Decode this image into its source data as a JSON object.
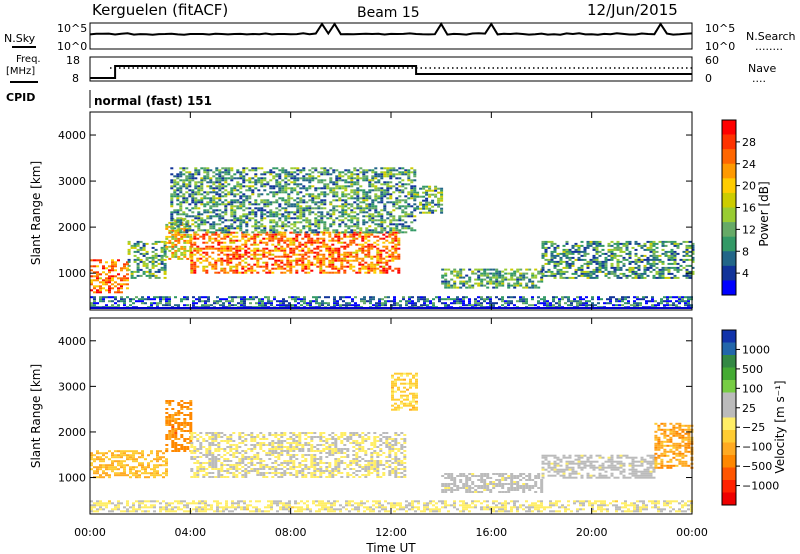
{
  "header": {
    "site": "Kerguelen (fitACF)",
    "beam": "Beam 15",
    "date": "12/Jun/2015"
  },
  "noise_panel": {
    "left_label": "N.Sky",
    "right_label": "N.Search",
    "right_legend_line": "........",
    "left_ticks": [
      "10^5",
      "10^0"
    ],
    "right_ticks": [
      "10^5",
      "10^0"
    ]
  },
  "freq_panel": {
    "left_label_line1": "Freq.",
    "left_label_line2": "[MHz]",
    "right_label": "Nave",
    "right_legend_line": "....",
    "left_ticks": [
      "18",
      "8"
    ],
    "right_ticks": [
      "60",
      "0"
    ],
    "cpid_label": "CPID",
    "mode_label": "normal (fast) 151"
  },
  "power_panel": {
    "ylabel": "Slant Range [km]",
    "yticks": [
      "4000",
      "3000",
      "2000",
      "1000"
    ],
    "colorbar_label": "Power [dB]",
    "colorbar_ticks": [
      "28",
      "24",
      "20",
      "16",
      "12",
      "8",
      "4"
    ],
    "colorbar_colors": [
      "#ff0000",
      "#ff3300",
      "#ff6600",
      "#ff9900",
      "#ffcc00",
      "#cccc00",
      "#99cc33",
      "#66aa66",
      "#339966",
      "#226688",
      "#113399",
      "#0000ff"
    ]
  },
  "velocity_panel": {
    "ylabel": "Slant Range [km]",
    "yticks": [
      "4000",
      "3000",
      "2000",
      "1000"
    ],
    "colorbar_label": "Velocity [m s⁻¹]",
    "colorbar_ticks": [
      "1000",
      "500",
      "100",
      "25",
      "−25",
      "−100",
      "−500",
      "−1000"
    ],
    "colorbar_colors": [
      "#1133aa",
      "#2266aa",
      "#338844",
      "#44aa33",
      "#77cc44",
      "#bbbbbb",
      "#bbbbbb",
      "#ffee66",
      "#ffcc33",
      "#ffaa22",
      "#ff8800",
      "#ff5500",
      "#ff2200",
      "#ee0000"
    ]
  },
  "xaxis": {
    "label": "Time UT",
    "ticks": [
      "00:00",
      "04:00",
      "08:00",
      "12:00",
      "16:00",
      "20:00",
      "00:00"
    ]
  },
  "chart_data": [
    {
      "type": "heatmap",
      "title": "Power",
      "xlabel": "Time UT",
      "ylabel": "Slant Range [km]",
      "xlim": [
        0,
        24
      ],
      "ylim": [
        200,
        4500
      ],
      "zlabel": "Power [dB]",
      "zlim": [
        0,
        30
      ],
      "regions": [
        {
          "x0": 0.0,
          "x1": 1.5,
          "y0": 600,
          "y1": 1300,
          "z": 24
        },
        {
          "x0": 1.5,
          "x1": 3.0,
          "y0": 900,
          "y1": 1700,
          "z": 10
        },
        {
          "x0": 3.0,
          "x1": 4.0,
          "y0": 1300,
          "y1": 2200,
          "z": 18
        },
        {
          "x0": 4.0,
          "x1": 12.3,
          "y0": 1000,
          "y1": 1900,
          "z": 24
        },
        {
          "x0": 3.2,
          "x1": 13.0,
          "y0": 1900,
          "y1": 3300,
          "z": 9
        },
        {
          "x0": 13.0,
          "x1": 14.0,
          "y0": 2300,
          "y1": 2900,
          "z": 10
        },
        {
          "x0": 14.0,
          "x1": 18.0,
          "y0": 700,
          "y1": 1100,
          "z": 10
        },
        {
          "x0": 18.0,
          "x1": 24.0,
          "y0": 900,
          "y1": 1700,
          "z": 9
        },
        {
          "x0": 0.0,
          "x1": 24.0,
          "y0": 250,
          "y1": 500,
          "z": 5
        }
      ]
    },
    {
      "type": "heatmap",
      "title": "Velocity",
      "xlabel": "Time UT",
      "ylabel": "Slant Range [km]",
      "xlim": [
        0,
        24
      ],
      "ylim": [
        200,
        4500
      ],
      "zlabel": "Velocity [m s⁻¹]",
      "zlim": [
        -1000,
        1000
      ],
      "regions": [
        {
          "x0": 0.0,
          "x1": 3.0,
          "y0": 1000,
          "y1": 1600,
          "z": -300
        },
        {
          "x0": 3.0,
          "x1": 4.0,
          "y0": 1600,
          "y1": 2700,
          "z": -500
        },
        {
          "x0": 4.0,
          "x1": 12.5,
          "y0": 1000,
          "y1": 2000,
          "z": 0
        },
        {
          "x0": 12.0,
          "x1": 13.0,
          "y0": 2500,
          "y1": 3300,
          "z": -200
        },
        {
          "x0": 14.0,
          "x1": 18.0,
          "y0": 700,
          "y1": 1100,
          "z": 100
        },
        {
          "x0": 18.0,
          "x1": 22.5,
          "y0": 1000,
          "y1": 1500,
          "z": 100
        },
        {
          "x0": 22.5,
          "x1": 24.0,
          "y0": 1200,
          "y1": 2200,
          "z": -400
        },
        {
          "x0": 0.0,
          "x1": 24.0,
          "y0": 250,
          "y1": 500,
          "z": -30
        }
      ]
    }
  ]
}
